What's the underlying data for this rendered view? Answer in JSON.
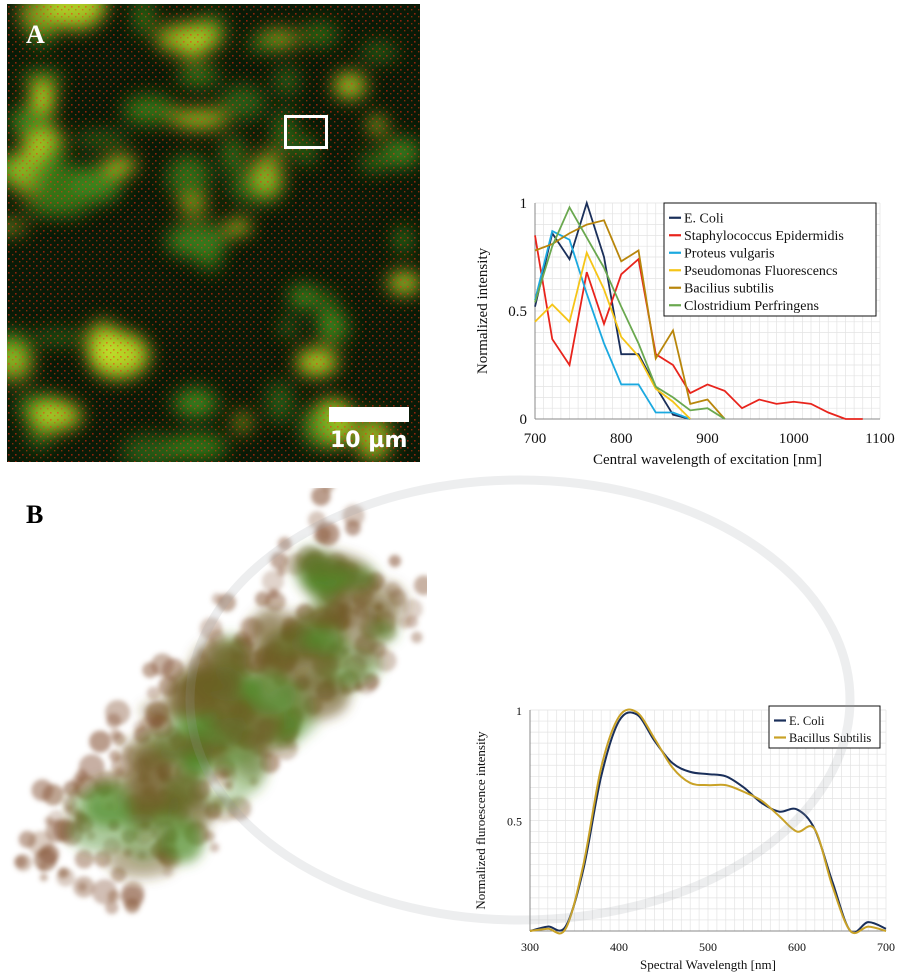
{
  "panels": {
    "a": {
      "letter": "A",
      "scale_label": "10 µm"
    },
    "b": {
      "letter": "B"
    }
  },
  "chart_data": [
    {
      "type": "line",
      "title": "",
      "xlabel": "Central wavelength of excitation [nm]",
      "ylabel": "Normalized intensity",
      "xlim": [
        700,
        1100
      ],
      "ylim": [
        0,
        1
      ],
      "xticks": [
        700,
        800,
        900,
        1000,
        1100
      ],
      "yticks": [
        0,
        0.5,
        1
      ],
      "yticklabels": [
        "0",
        "0.5",
        "1"
      ],
      "grid": true,
      "legend_position": "top-right",
      "series": [
        {
          "name": "E. Coli",
          "color": "#1a2f5a",
          "x": [
            700,
            720,
            740,
            760,
            780,
            800,
            820,
            840,
            860,
            880
          ],
          "y": [
            0.52,
            0.86,
            0.74,
            1.0,
            0.75,
            0.3,
            0.3,
            0.15,
            0.02,
            0.0
          ]
        },
        {
          "name": "Staphylococcus Epidermidis",
          "color": "#e8241c",
          "x": [
            700,
            720,
            740,
            760,
            780,
            800,
            820,
            840,
            860,
            880,
            900,
            920,
            940,
            960,
            980,
            1000,
            1020,
            1040,
            1060,
            1080
          ],
          "y": [
            0.85,
            0.37,
            0.25,
            0.68,
            0.44,
            0.67,
            0.74,
            0.3,
            0.25,
            0.12,
            0.16,
            0.13,
            0.05,
            0.09,
            0.07,
            0.08,
            0.07,
            0.03,
            0.0,
            0.0
          ]
        },
        {
          "name": "Proteus vulgaris",
          "color": "#1ba9e0",
          "x": [
            700,
            720,
            740,
            760,
            780,
            800,
            820,
            840,
            860,
            880
          ],
          "y": [
            0.55,
            0.87,
            0.83,
            0.58,
            0.35,
            0.16,
            0.16,
            0.03,
            0.03,
            0.0
          ]
        },
        {
          "name": "Pseudomonas Fluorescencs",
          "color": "#f5c518",
          "x": [
            700,
            720,
            740,
            760,
            780,
            800,
            820,
            840,
            860,
            880
          ],
          "y": [
            0.45,
            0.53,
            0.45,
            0.77,
            0.6,
            0.38,
            0.29,
            0.14,
            0.08,
            0.0
          ]
        },
        {
          "name": "Bacilius subtilis",
          "color": "#b8860b",
          "x": [
            700,
            720,
            740,
            760,
            780,
            800,
            820,
            840,
            860,
            880,
            900,
            920
          ],
          "y": [
            0.78,
            0.81,
            0.86,
            0.9,
            0.92,
            0.73,
            0.78,
            0.28,
            0.41,
            0.07,
            0.09,
            0.0
          ]
        },
        {
          "name": "Clostridium Perfringens",
          "color": "#6aa84f",
          "x": [
            700,
            720,
            740,
            760,
            780,
            800,
            820,
            840,
            860,
            880,
            900,
            920
          ],
          "y": [
            0.54,
            0.8,
            0.98,
            0.84,
            0.7,
            0.52,
            0.35,
            0.15,
            0.1,
            0.04,
            0.05,
            0.0
          ]
        }
      ]
    },
    {
      "type": "line",
      "title": "",
      "xlabel": "Spectral Wavelength [nm]",
      "ylabel": "Normalized fluroescence intensity",
      "xlim": [
        300,
        700
      ],
      "ylim": [
        0,
        1
      ],
      "xticks": [
        300,
        400,
        500,
        600,
        700
      ],
      "yticks": [
        0.5,
        1
      ],
      "yticklabels": [
        "0.5",
        "1"
      ],
      "grid": true,
      "legend_position": "top-right",
      "series": [
        {
          "name": "E. Coli",
          "color": "#1a2f5a",
          "x": [
            300,
            320,
            340,
            360,
            380,
            400,
            420,
            440,
            460,
            480,
            500,
            520,
            540,
            560,
            580,
            600,
            620,
            640,
            660,
            680,
            700
          ],
          "y": [
            0.0,
            0.02,
            0.02,
            0.28,
            0.7,
            0.95,
            0.98,
            0.86,
            0.76,
            0.72,
            0.71,
            0.7,
            0.65,
            0.58,
            0.54,
            0.55,
            0.46,
            0.22,
            0.0,
            0.04,
            0.01
          ]
        },
        {
          "name": "Bacillus Subtilis",
          "color": "#c9a227",
          "x": [
            300,
            320,
            340,
            360,
            380,
            400,
            420,
            440,
            460,
            480,
            500,
            520,
            540,
            560,
            580,
            600,
            620,
            640,
            660,
            680,
            700
          ],
          "y": [
            0.0,
            0.01,
            0.01,
            0.3,
            0.74,
            0.97,
            0.99,
            0.87,
            0.74,
            0.67,
            0.66,
            0.66,
            0.63,
            0.59,
            0.52,
            0.45,
            0.46,
            0.2,
            0.0,
            0.02,
            0.0
          ]
        }
      ]
    }
  ]
}
